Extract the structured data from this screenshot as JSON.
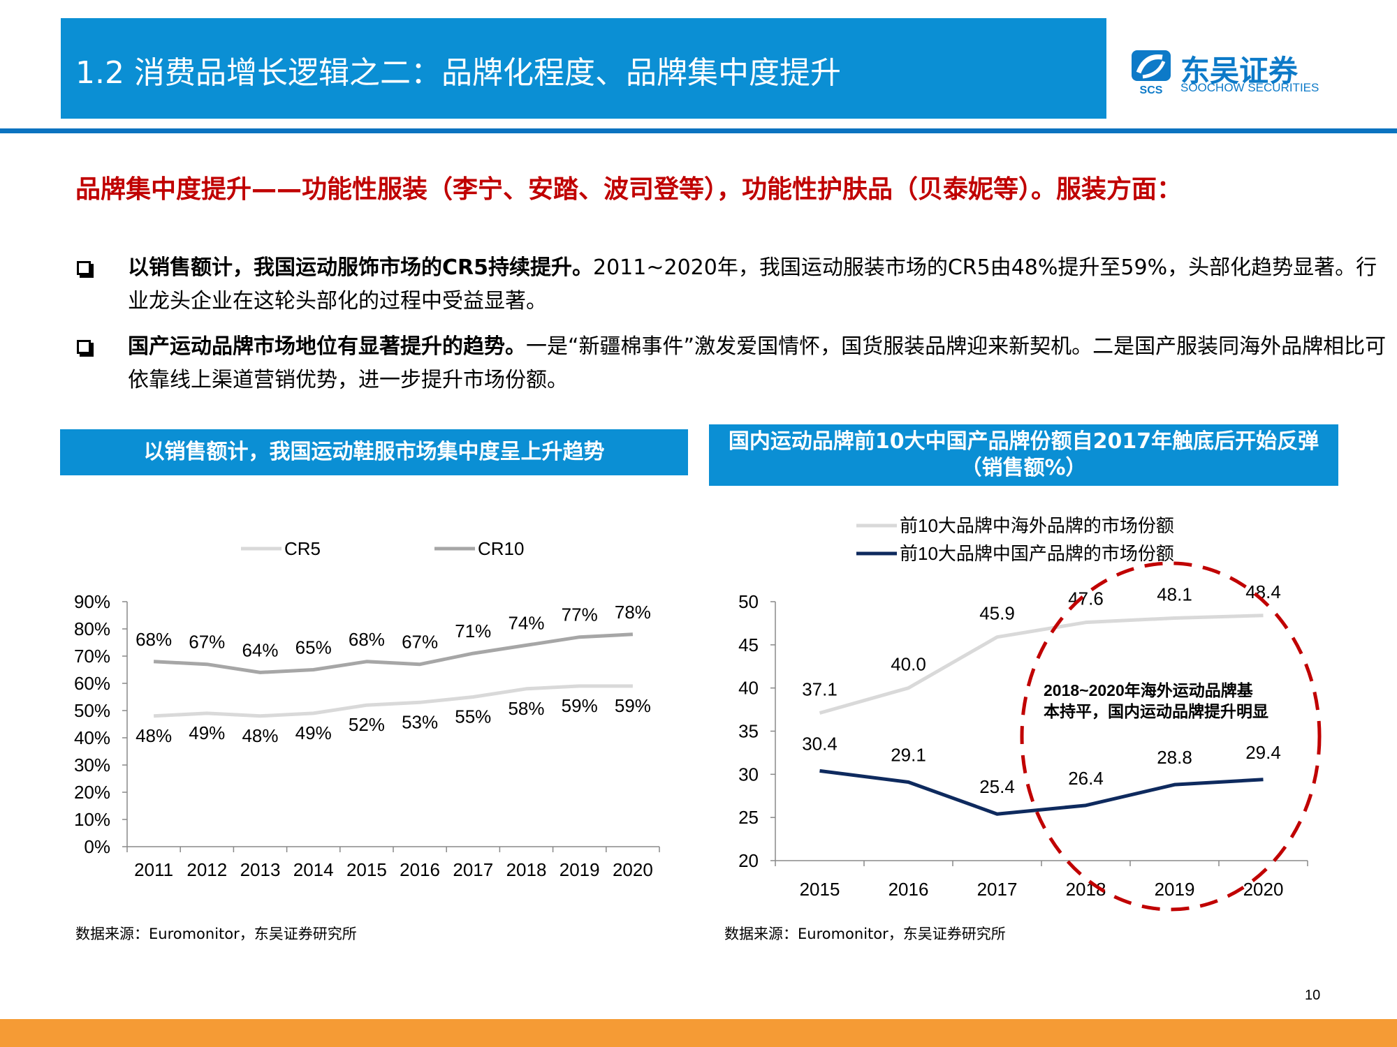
{
  "header": {
    "title": "1.2 消费品增长逻辑之二：品牌化程度、品牌集中度提升",
    "logo_main": "东吴证券",
    "logo_sub": "SOOCHOW SECURITIES",
    "logo_mark": "SCS"
  },
  "headline": "品牌集中度提升——功能性服装（李宁、安踏、波司登等），功能性护肤品（贝泰妮等）。服装方面：",
  "bullets": [
    {
      "bold": "以销售额计，我国运动服饰市场的CR5持续提升。",
      "text": "2011~2020年，我国运动服装市场的CR5由48%提升至59%，头部化趋势显著。行业龙头企业在这轮头部化的过程中受益显著。"
    },
    {
      "bold": "国产运动品牌市场地位有显著提升的趋势。",
      "text": "一是“新疆棉事件”激发爱国情怀，国货服装品牌迎来新契机。二是国产服装同海外品牌相比可依靠线上渠道营销优势，进一步提升市场份额。"
    }
  ],
  "chart_data": [
    {
      "type": "line",
      "title": "以销售额计，我国运动鞋服市场集中度呈上升趋势",
      "categories": [
        "2011",
        "2012",
        "2013",
        "2014",
        "2015",
        "2016",
        "2017",
        "2018",
        "2019",
        "2020"
      ],
      "series": [
        {
          "name": "CR5",
          "values": [
            48,
            49,
            48,
            49,
            52,
            53,
            55,
            58,
            59,
            59
          ],
          "labels": [
            "48%",
            "49%",
            "48%",
            "49%",
            "52%",
            "53%",
            "55%",
            "58%",
            "59%",
            "59%"
          ],
          "color": "#d9d9d9"
        },
        {
          "name": "CR10",
          "values": [
            68,
            67,
            64,
            65,
            68,
            67,
            71,
            74,
            77,
            78
          ],
          "labels": [
            "68%",
            "67%",
            "64%",
            "65%",
            "68%",
            "67%",
            "71%",
            "74%",
            "77%",
            "78%"
          ],
          "color": "#a6a6a6"
        }
      ],
      "ylim": [
        0,
        90
      ],
      "yticks": [
        "0%",
        "10%",
        "20%",
        "30%",
        "40%",
        "50%",
        "60%",
        "70%",
        "80%",
        "90%"
      ],
      "legend": "top",
      "grid": false,
      "source": "数据来源：Euromonitor，东吴证券研究所"
    },
    {
      "type": "line",
      "title": "国内运动品牌前10大中国产品牌份额自2017年触底后开始反弹（销售额%）",
      "categories": [
        "2015",
        "2016",
        "2017",
        "2018",
        "2019",
        "2020"
      ],
      "series": [
        {
          "name": "前10大品牌中海外品牌的市场份额",
          "values": [
            37.1,
            40.0,
            45.9,
            47.6,
            48.1,
            48.4
          ],
          "labels": [
            "37.1",
            "40.0",
            "45.9",
            "47.6",
            "48.1",
            "48.4"
          ],
          "color": "#d9d9d9"
        },
        {
          "name": "前10大品牌中国产品牌的市场份额",
          "values": [
            30.4,
            29.1,
            25.4,
            26.4,
            28.8,
            29.4
          ],
          "labels": [
            "30.4",
            "29.1",
            "25.4",
            "26.4",
            "28.8",
            "29.4"
          ],
          "color": "#0e2a5e"
        }
      ],
      "ylim": [
        20,
        50
      ],
      "yticks": [
        "20",
        "25",
        "30",
        "35",
        "40",
        "45",
        "50"
      ],
      "legend": "top",
      "grid": false,
      "annotation": "2018~2020年海外运动品牌基本持平，国内运动品牌提升明显",
      "annotation_color": "#c00000",
      "source": "数据来源：Euromonitor，东吴证券研究所"
    }
  ],
  "page_number": "10",
  "colors": {
    "header_blue": "#0b8fd4",
    "rule_blue": "#0b73c0",
    "headline_red": "#c00000",
    "footer_orange": "#f59b35"
  }
}
